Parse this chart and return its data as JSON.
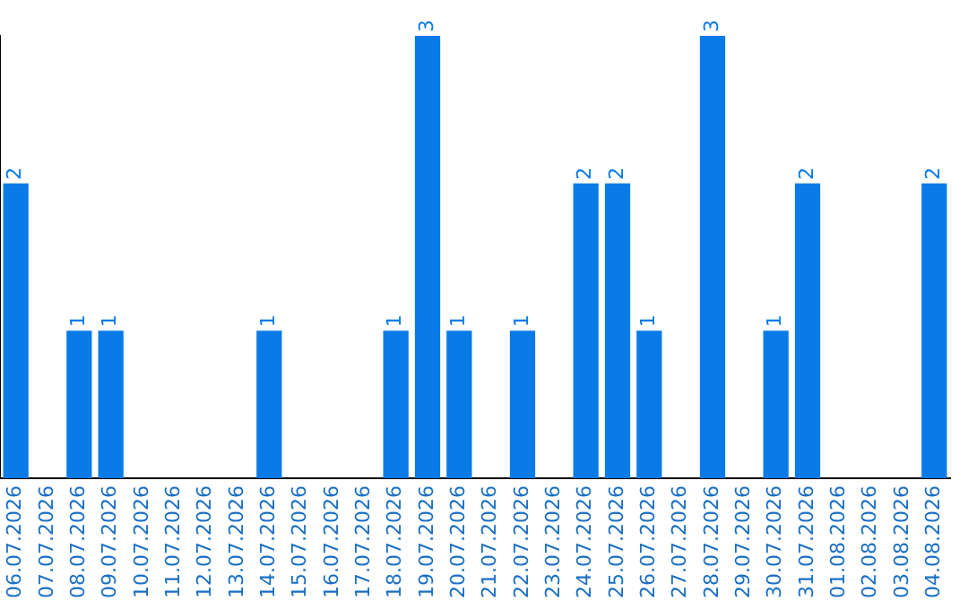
{
  "chart_data": {
    "type": "bar",
    "categories": [
      "06.07.2026",
      "07.07.2026",
      "08.07.2026",
      "09.07.2026",
      "10.07.2026",
      "11.07.2026",
      "12.07.2026",
      "13.07.2026",
      "14.07.2026",
      "15.07.2026",
      "16.07.2026",
      "17.07.2026",
      "18.07.2026",
      "19.07.2026",
      "20.07.2026",
      "21.07.2026",
      "22.07.2026",
      "23.07.2026",
      "24.07.2026",
      "25.07.2026",
      "26.07.2026",
      "27.07.2026",
      "28.07.2026",
      "29.07.2026",
      "30.07.2026",
      "31.07.2026",
      "01.08.2026",
      "02.08.2026",
      "03.08.2026",
      "04.08.2026"
    ],
    "values": [
      2,
      0,
      1,
      1,
      0,
      0,
      0,
      0,
      1,
      0,
      0,
      0,
      1,
      3,
      1,
      0,
      1,
      0,
      2,
      2,
      1,
      0,
      3,
      0,
      1,
      2,
      0,
      0,
      0,
      2
    ],
    "value_labels": [
      "2",
      null,
      "1",
      "1",
      null,
      null,
      null,
      null,
      "1",
      null,
      null,
      null,
      "1",
      "3",
      "1",
      null,
      "1",
      null,
      "2",
      "2",
      "1",
      null,
      "3",
      null,
      "1",
      "2",
      null,
      null,
      null,
      "2"
    ],
    "color": "#0a7be6",
    "ylim": [
      0,
      3
    ],
    "tick_labels": "x",
    "grid": false,
    "legend": false
  }
}
